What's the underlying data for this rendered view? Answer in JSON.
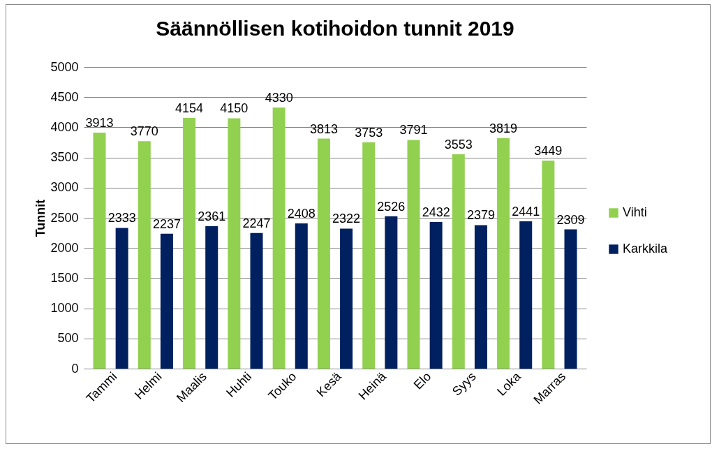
{
  "chart_data": {
    "type": "bar",
    "title": "Säännöllisen kotihoidon tunnit 2019",
    "ylabel": "Tunnit",
    "categories": [
      "Tammi",
      "Helmi",
      "Maalis",
      "Huhti",
      "Touko",
      "Kesä",
      "Heinä",
      "Elo",
      "Syys",
      "Loka",
      "Marras"
    ],
    "series": [
      {
        "name": "Vihti",
        "color": "#92d050",
        "values": [
          3913,
          3770,
          4154,
          4150,
          4330,
          3813,
          3753,
          3791,
          3553,
          3819,
          3449
        ]
      },
      {
        "name": "Karkkila",
        "color": "#002060",
        "values": [
          2333,
          2237,
          2361,
          2247,
          2408,
          2322,
          2526,
          2432,
          2379,
          2441,
          2309
        ]
      }
    ],
    "ylim": [
      0,
      5000
    ],
    "yticks": [
      0,
      500,
      1000,
      1500,
      2000,
      2500,
      3000,
      3500,
      4000,
      4500,
      5000
    ],
    "grid": "y",
    "legend": "right",
    "data_labels": true
  }
}
